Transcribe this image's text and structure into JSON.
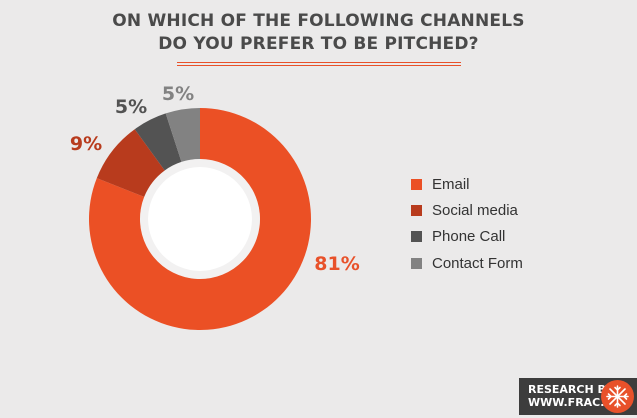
{
  "title_line1": "ON WHICH OF THE FOLLOWING CHANNELS",
  "title_line2": "DO YOU PREFER TO BE PITCHED?",
  "chart_data": {
    "type": "pie",
    "donut": true,
    "title": "ON WHICH OF THE FOLLOWING CHANNELS DO YOU PREFER TO BE PITCHED?",
    "categories": [
      "Email",
      "Social media",
      "Phone Call",
      "Contact Form"
    ],
    "values": [
      81,
      9,
      5,
      5
    ],
    "labels": [
      "81%",
      "9%",
      "5%",
      "5%"
    ],
    "colors": [
      "#eb5025",
      "#b83b1d",
      "#535353",
      "#828282"
    ],
    "label_colors": [
      "#e8512a",
      "#b83b1d",
      "#535353",
      "#828282"
    ],
    "legend": "right"
  },
  "badge": {
    "line1": "RESEARCH BY",
    "line2": "WWW.FRAC.TL"
  }
}
